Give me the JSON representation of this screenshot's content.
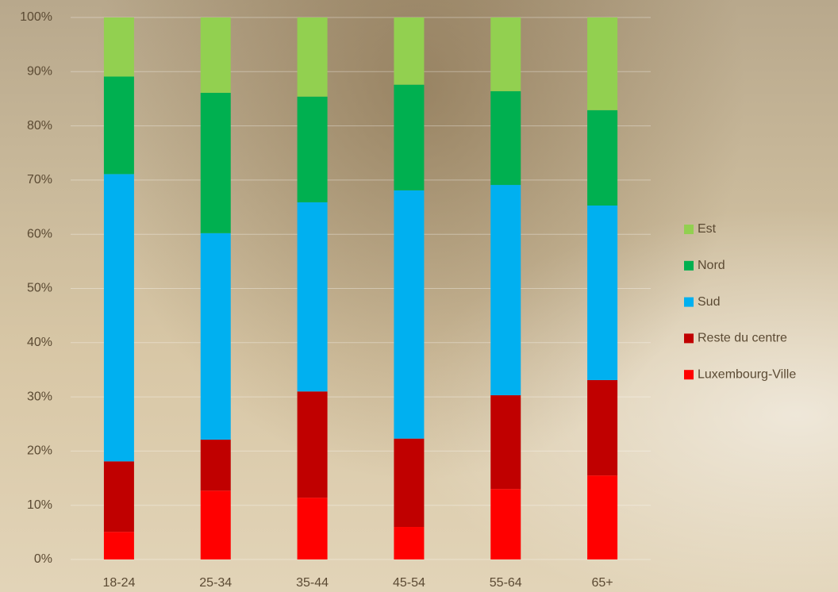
{
  "chart_data": {
    "type": "stacked_bar",
    "categories": [
      "18-24",
      "25-34",
      "35-44",
      "45-54",
      "55-64",
      "65+"
    ],
    "series": [
      {
        "name": "Luxembourg-Ville",
        "color": "#ff0000",
        "values": [
          5.1,
          12.7,
          11.4,
          6.0,
          13.0,
          15.5
        ]
      },
      {
        "name": "Reste du centre",
        "color": "#c00000",
        "values": [
          13.0,
          9.4,
          19.6,
          16.3,
          17.3,
          17.6
        ]
      },
      {
        "name": "Sud",
        "color": "#00b0f0",
        "values": [
          53.0,
          38.1,
          34.9,
          45.8,
          38.8,
          32.2
        ]
      },
      {
        "name": "Nord",
        "color": "#00b050",
        "values": [
          18.0,
          25.9,
          19.5,
          19.5,
          17.3,
          17.6
        ]
      },
      {
        "name": "Est",
        "color": "#92d050",
        "values": [
          10.9,
          13.9,
          14.6,
          12.4,
          13.6,
          17.1
        ]
      }
    ],
    "ylim": [
      0,
      100
    ],
    "yticks": [
      {
        "value": 0,
        "label": "0%"
      },
      {
        "value": 10,
        "label": "10%"
      },
      {
        "value": 20,
        "label": "20%"
      },
      {
        "value": 30,
        "label": "30%"
      },
      {
        "value": 40,
        "label": "40%"
      },
      {
        "value": 50,
        "label": "50%"
      },
      {
        "value": 60,
        "label": "60%"
      },
      {
        "value": 70,
        "label": "70%"
      },
      {
        "value": 80,
        "label": "80%"
      },
      {
        "value": 90,
        "label": "90%"
      },
      {
        "value": 100,
        "label": "100%"
      }
    ],
    "grid": true,
    "legend": "right"
  }
}
